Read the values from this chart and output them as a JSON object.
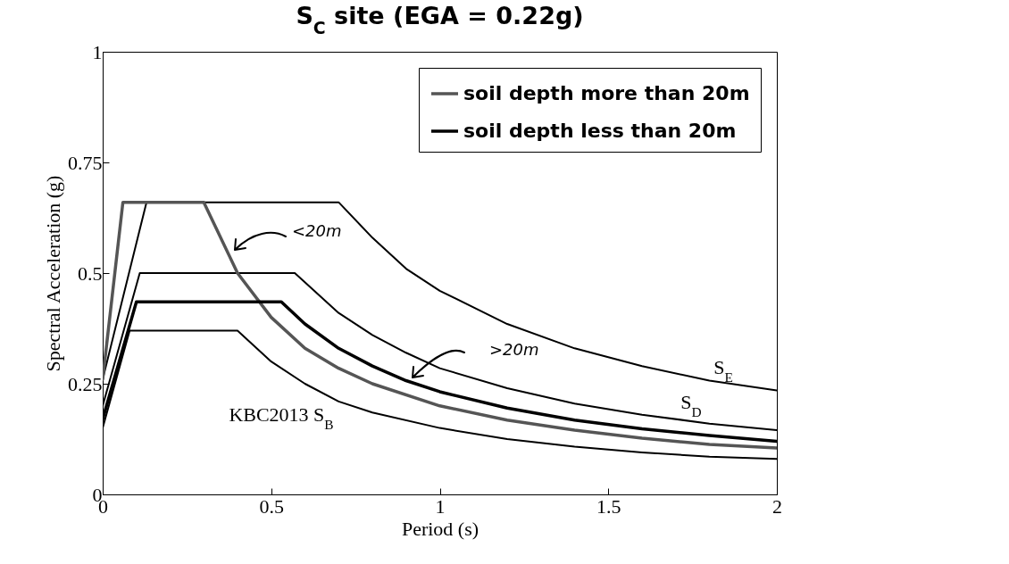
{
  "chart_data": {
    "type": "line",
    "title": "S$_{C}$ site   (EGA = 0.22g)",
    "xlabel": "Period (s)",
    "ylabel": "Spectral Acceleration (g)",
    "xlim": [
      0,
      2
    ],
    "ylim": [
      0,
      1
    ],
    "xticks": [
      0,
      0.5,
      1,
      1.5,
      2
    ],
    "yticks": [
      0,
      0.25,
      0.5,
      0.75,
      1
    ],
    "grid": false,
    "legend": "top right",
    "series": [
      {
        "color": "#000000",
        "x": [
          0,
          0.13,
          0.7,
          0.8,
          0.9,
          1,
          1.2,
          1.4,
          1.6,
          1.8,
          2
        ],
        "values": [
          0.26,
          0.66,
          0.66,
          0.58,
          0.51,
          0.46,
          0.385,
          0.33,
          0.29,
          0.257,
          0.235
        ]
      },
      {
        "color": "#000000",
        "x": [
          0,
          0.11,
          0.57,
          0.7,
          0.8,
          0.9,
          1,
          1.2,
          1.4,
          1.6,
          1.8,
          2
        ],
        "values": [
          0.2,
          0.5,
          0.5,
          0.41,
          0.36,
          0.32,
          0.285,
          0.24,
          0.205,
          0.18,
          0.16,
          0.145
        ]
      },
      {
        "color": "#000000",
        "x": [
          0,
          0.08,
          0.4,
          0.5,
          0.6,
          0.7,
          0.8,
          1,
          1.2,
          1.4,
          1.6,
          1.8,
          2
        ],
        "values": [
          0.15,
          0.37,
          0.37,
          0.3,
          0.25,
          0.21,
          0.185,
          0.15,
          0.125,
          0.108,
          0.095,
          0.085,
          0.08
        ]
      },
      {
        "name": "soil depth more than 20m",
        "color": "#555555",
        "x": [
          0,
          0.06,
          0.3,
          0.4,
          0.5,
          0.6,
          0.7,
          0.8,
          1,
          1.2,
          1.4,
          1.6,
          1.8,
          2
        ],
        "values": [
          0.26,
          0.66,
          0.66,
          0.5,
          0.4,
          0.33,
          0.285,
          0.25,
          0.2,
          0.168,
          0.145,
          0.127,
          0.113,
          0.105
        ]
      },
      {
        "name": "soil depth less than 20m",
        "color": "#000000",
        "x": [
          0,
          0.1,
          0.53,
          0.6,
          0.7,
          0.8,
          0.9,
          1,
          1.2,
          1.4,
          1.6,
          1.8,
          2
        ],
        "values": [
          0.17,
          0.435,
          0.435,
          0.385,
          0.33,
          0.29,
          0.257,
          0.232,
          0.195,
          0.168,
          0.148,
          0.133,
          0.12
        ]
      }
    ],
    "annotations": [
      "<20m",
      ">20m",
      "S$_{E}$",
      "S$_{D}$",
      "KBC2013 S$_{B}$"
    ]
  }
}
